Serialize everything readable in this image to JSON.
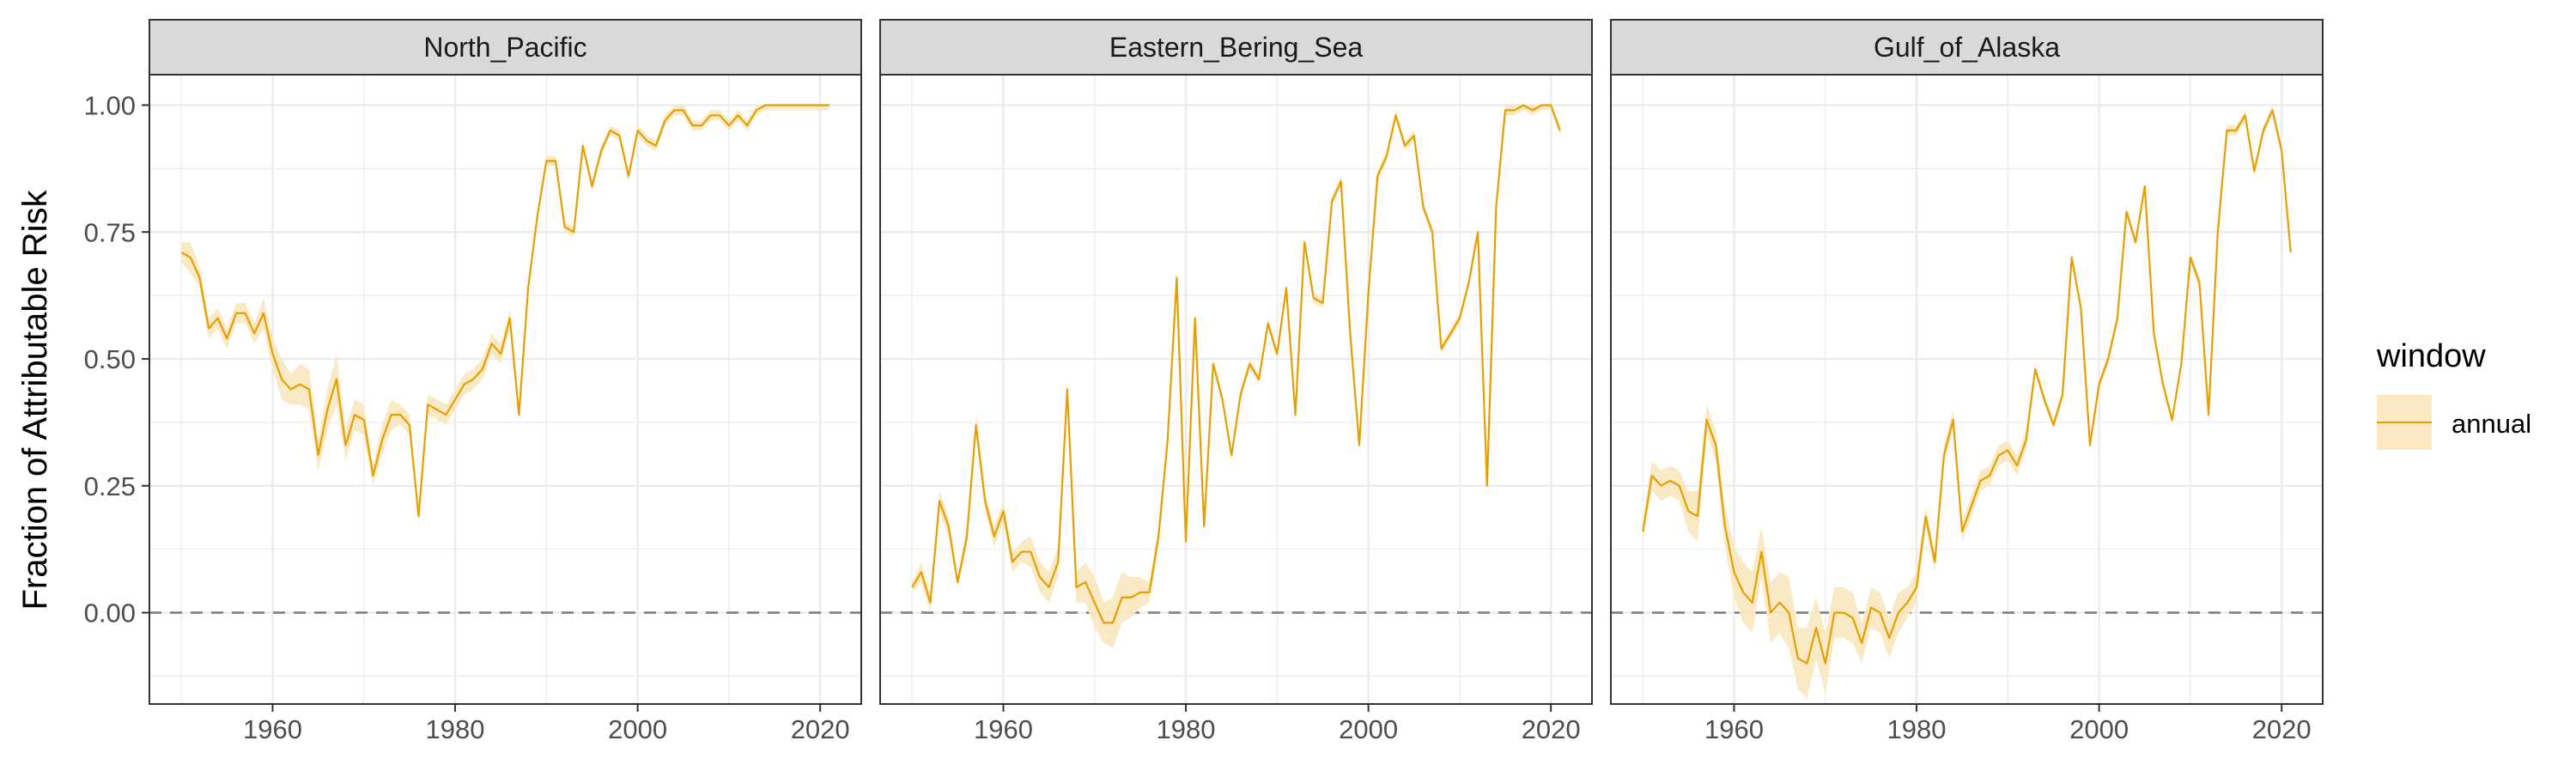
{
  "figure": {
    "ylabel": "Fraction of Attributable Risk",
    "legend": {
      "title": "window",
      "label": "annual",
      "placement": "right"
    }
  },
  "colors": {
    "line": "#E69F00",
    "ribbon": "#F9E8C1",
    "strip": "#D9D9D9",
    "grid": "#EBEBEB",
    "panel_border": "#333333",
    "zero_line": "#808080"
  },
  "chart_data": [
    {
      "type": "line",
      "title": "North_Pacific",
      "xlim": [
        1946.5,
        2024.5
      ],
      "ylim": [
        -0.18,
        1.06
      ],
      "xticks": [
        1960,
        1980,
        2000,
        2020
      ],
      "yticks": [
        "0.00",
        "0.25",
        "0.50",
        "0.75",
        "1.00"
      ],
      "grid": true,
      "hline": 0,
      "series": [
        {
          "x": [
            1950,
            1951,
            1952,
            1953,
            1954,
            1955,
            1956,
            1957,
            1958,
            1959,
            1960,
            1961,
            1962,
            1963,
            1964,
            1965,
            1966,
            1967,
            1968,
            1969,
            1970,
            1971,
            1972,
            1973,
            1974,
            1975,
            1976,
            1977,
            1978,
            1979,
            1980,
            1981,
            1982,
            1983,
            1984,
            1985,
            1986,
            1987,
            1988,
            1989,
            1990,
            1991,
            1992,
            1993,
            1994,
            1995,
            1996,
            1997,
            1998,
            1999,
            2000,
            2001,
            2002,
            2003,
            2004,
            2005,
            2006,
            2007,
            2008,
            2009,
            2010,
            2011,
            2012,
            2013,
            2014,
            2015,
            2016,
            2017,
            2018,
            2019,
            2020,
            2021
          ],
          "y": [
            0.71,
            0.7,
            0.66,
            0.56,
            0.58,
            0.54,
            0.59,
            0.59,
            0.55,
            0.59,
            0.51,
            0.46,
            0.44,
            0.45,
            0.44,
            0.31,
            0.4,
            0.46,
            0.33,
            0.39,
            0.38,
            0.27,
            0.34,
            0.39,
            0.39,
            0.37,
            0.19,
            0.41,
            0.4,
            0.39,
            0.42,
            0.45,
            0.46,
            0.48,
            0.53,
            0.51,
            0.58,
            0.39,
            0.64,
            0.78,
            0.89,
            0.89,
            0.76,
            0.75,
            0.92,
            0.84,
            0.91,
            0.95,
            0.94,
            0.86,
            0.95,
            0.93,
            0.92,
            0.97,
            0.99,
            0.99,
            0.96,
            0.96,
            0.98,
            0.98,
            0.96,
            0.98,
            0.96,
            0.99,
            1.0,
            1.0,
            1.0,
            1.0,
            1.0,
            1.0,
            1.0,
            1.0
          ],
          "lower": [
            0.69,
            0.67,
            0.64,
            0.54,
            0.56,
            0.52,
            0.57,
            0.57,
            0.53,
            0.56,
            0.48,
            0.42,
            0.41,
            0.41,
            0.4,
            0.28,
            0.36,
            0.41,
            0.3,
            0.36,
            0.35,
            0.25,
            0.31,
            0.36,
            0.37,
            0.35,
            0.18,
            0.39,
            0.38,
            0.37,
            0.4,
            0.43,
            0.44,
            0.46,
            0.51,
            0.49,
            0.56,
            0.38,
            0.63,
            0.77,
            0.88,
            0.88,
            0.75,
            0.74,
            0.91,
            0.83,
            0.9,
            0.94,
            0.93,
            0.85,
            0.94,
            0.92,
            0.91,
            0.96,
            0.98,
            0.98,
            0.95,
            0.95,
            0.97,
            0.97,
            0.95,
            0.97,
            0.95,
            0.98,
            0.99,
            0.99,
            0.99,
            0.99,
            0.99,
            0.99,
            0.99,
            0.99
          ],
          "upper": [
            0.73,
            0.73,
            0.68,
            0.58,
            0.6,
            0.56,
            0.61,
            0.61,
            0.57,
            0.62,
            0.54,
            0.5,
            0.47,
            0.49,
            0.48,
            0.34,
            0.44,
            0.51,
            0.36,
            0.42,
            0.41,
            0.29,
            0.37,
            0.42,
            0.41,
            0.39,
            0.2,
            0.43,
            0.42,
            0.41,
            0.44,
            0.47,
            0.48,
            0.5,
            0.55,
            0.53,
            0.6,
            0.4,
            0.65,
            0.79,
            0.9,
            0.9,
            0.77,
            0.76,
            0.93,
            0.85,
            0.92,
            0.96,
            0.95,
            0.87,
            0.96,
            0.94,
            0.93,
            0.98,
            1.0,
            1.0,
            0.97,
            0.97,
            0.99,
            0.99,
            0.97,
            0.99,
            0.97,
            1.0,
            1.0,
            1.0,
            1.0,
            1.0,
            1.0,
            1.0,
            1.0,
            1.0
          ]
        }
      ]
    },
    {
      "type": "line",
      "title": "Eastern_Bering_Sea",
      "xlim": [
        1946.5,
        2024.5
      ],
      "ylim": [
        -0.18,
        1.06
      ],
      "xticks": [
        1960,
        1980,
        2000,
        2020
      ],
      "yticks": [
        "0.00",
        "0.25",
        "0.50",
        "0.75",
        "1.00"
      ],
      "grid": true,
      "hline": 0,
      "series": [
        {
          "x": [
            1950,
            1951,
            1952,
            1953,
            1954,
            1955,
            1956,
            1957,
            1958,
            1959,
            1960,
            1961,
            1962,
            1963,
            1964,
            1965,
            1966,
            1967,
            1968,
            1969,
            1970,
            1971,
            1972,
            1973,
            1974,
            1975,
            1976,
            1977,
            1978,
            1979,
            1980,
            1981,
            1982,
            1983,
            1984,
            1985,
            1986,
            1987,
            1988,
            1989,
            1990,
            1991,
            1992,
            1993,
            1994,
            1995,
            1996,
            1997,
            1998,
            1999,
            2000,
            2001,
            2002,
            2003,
            2004,
            2005,
            2006,
            2007,
            2008,
            2009,
            2010,
            2011,
            2012,
            2013,
            2014,
            2015,
            2016,
            2017,
            2018,
            2019,
            2020,
            2021
          ],
          "y": [
            0.05,
            0.08,
            0.02,
            0.22,
            0.17,
            0.06,
            0.15,
            0.37,
            0.22,
            0.15,
            0.2,
            0.1,
            0.12,
            0.12,
            0.07,
            0.05,
            0.1,
            0.44,
            0.05,
            0.06,
            0.02,
            -0.02,
            -0.02,
            0.03,
            0.03,
            0.04,
            0.04,
            0.15,
            0.34,
            0.66,
            0.14,
            0.58,
            0.17,
            0.49,
            0.42,
            0.31,
            0.43,
            0.49,
            0.46,
            0.57,
            0.51,
            0.64,
            0.39,
            0.73,
            0.62,
            0.61,
            0.81,
            0.85,
            0.55,
            0.33,
            0.63,
            0.86,
            0.9,
            0.98,
            0.92,
            0.94,
            0.8,
            0.75,
            0.52,
            0.55,
            0.58,
            0.65,
            0.75,
            0.25,
            0.8,
            0.99,
            0.99,
            1.0,
            0.99,
            1.0,
            1.0,
            0.95
          ],
          "lower": [
            0.04,
            0.06,
            0.0,
            0.2,
            0.15,
            0.05,
            0.13,
            0.35,
            0.2,
            0.13,
            0.18,
            0.08,
            0.1,
            0.09,
            0.04,
            0.02,
            0.07,
            0.42,
            0.02,
            0.02,
            -0.03,
            -0.06,
            -0.07,
            -0.02,
            -0.01,
            0.01,
            0.02,
            0.13,
            0.33,
            0.65,
            0.13,
            0.57,
            0.16,
            0.48,
            0.41,
            0.3,
            0.42,
            0.48,
            0.45,
            0.56,
            0.5,
            0.63,
            0.38,
            0.72,
            0.61,
            0.6,
            0.8,
            0.84,
            0.54,
            0.32,
            0.62,
            0.85,
            0.89,
            0.97,
            0.91,
            0.93,
            0.79,
            0.74,
            0.51,
            0.54,
            0.57,
            0.64,
            0.74,
            0.24,
            0.79,
            0.98,
            0.98,
            0.99,
            0.98,
            0.99,
            0.99,
            0.94
          ],
          "upper": [
            0.06,
            0.1,
            0.04,
            0.24,
            0.19,
            0.07,
            0.17,
            0.39,
            0.24,
            0.17,
            0.22,
            0.12,
            0.14,
            0.15,
            0.1,
            0.08,
            0.13,
            0.46,
            0.08,
            0.1,
            0.07,
            0.02,
            0.03,
            0.08,
            0.07,
            0.07,
            0.06,
            0.17,
            0.35,
            0.67,
            0.15,
            0.59,
            0.18,
            0.5,
            0.43,
            0.32,
            0.44,
            0.5,
            0.47,
            0.58,
            0.52,
            0.65,
            0.4,
            0.74,
            0.63,
            0.62,
            0.82,
            0.86,
            0.56,
            0.34,
            0.64,
            0.87,
            0.91,
            0.99,
            0.93,
            0.95,
            0.81,
            0.76,
            0.53,
            0.56,
            0.59,
            0.66,
            0.76,
            0.26,
            0.81,
            1.0,
            1.0,
            1.0,
            1.0,
            1.0,
            1.0,
            0.96
          ]
        }
      ]
    },
    {
      "type": "line",
      "title": "Gulf_of_Alaska",
      "xlim": [
        1946.5,
        2024.5
      ],
      "ylim": [
        -0.18,
        1.06
      ],
      "xticks": [
        1960,
        1980,
        2000,
        2020
      ],
      "yticks": [
        "0.00",
        "0.25",
        "0.50",
        "0.75",
        "1.00"
      ],
      "grid": true,
      "hline": 0,
      "series": [
        {
          "x": [
            1950,
            1951,
            1952,
            1953,
            1954,
            1955,
            1956,
            1957,
            1958,
            1959,
            1960,
            1961,
            1962,
            1963,
            1964,
            1965,
            1966,
            1967,
            1968,
            1969,
            1970,
            1971,
            1972,
            1973,
            1974,
            1975,
            1976,
            1977,
            1978,
            1979,
            1980,
            1981,
            1982,
            1983,
            1984,
            1985,
            1986,
            1987,
            1988,
            1989,
            1990,
            1991,
            1992,
            1993,
            1994,
            1995,
            1996,
            1997,
            1998,
            1999,
            2000,
            2001,
            2002,
            2003,
            2004,
            2005,
            2006,
            2007,
            2008,
            2009,
            2010,
            2011,
            2012,
            2013,
            2014,
            2015,
            2016,
            2017,
            2018,
            2019,
            2020,
            2021
          ],
          "y": [
            0.16,
            0.27,
            0.25,
            0.26,
            0.25,
            0.2,
            0.19,
            0.38,
            0.33,
            0.17,
            0.08,
            0.04,
            0.02,
            0.12,
            0.0,
            0.02,
            0.0,
            -0.09,
            -0.1,
            -0.03,
            -0.1,
            0.0,
            0.0,
            -0.01,
            -0.06,
            0.01,
            0.0,
            -0.05,
            0.0,
            0.02,
            0.05,
            0.19,
            0.1,
            0.31,
            0.38,
            0.16,
            0.21,
            0.26,
            0.27,
            0.31,
            0.32,
            0.29,
            0.34,
            0.48,
            0.42,
            0.37,
            0.43,
            0.7,
            0.6,
            0.33,
            0.45,
            0.5,
            0.58,
            0.79,
            0.73,
            0.84,
            0.55,
            0.45,
            0.38,
            0.49,
            0.7,
            0.65,
            0.39,
            0.75,
            0.95,
            0.95,
            0.98,
            0.87,
            0.95,
            0.99,
            0.91,
            0.71
          ],
          "lower": [
            0.14,
            0.24,
            0.22,
            0.23,
            0.22,
            0.16,
            0.14,
            0.35,
            0.3,
            0.13,
            0.03,
            -0.02,
            -0.04,
            0.07,
            -0.06,
            -0.04,
            -0.07,
            -0.15,
            -0.17,
            -0.09,
            -0.16,
            -0.05,
            -0.05,
            -0.06,
            -0.1,
            -0.03,
            -0.04,
            -0.09,
            -0.04,
            -0.01,
            0.02,
            0.17,
            0.08,
            0.29,
            0.36,
            0.14,
            0.19,
            0.24,
            0.25,
            0.29,
            0.3,
            0.27,
            0.32,
            0.47,
            0.41,
            0.36,
            0.42,
            0.69,
            0.59,
            0.32,
            0.44,
            0.49,
            0.57,
            0.78,
            0.72,
            0.83,
            0.54,
            0.44,
            0.37,
            0.48,
            0.69,
            0.64,
            0.38,
            0.74,
            0.94,
            0.94,
            0.97,
            0.86,
            0.94,
            0.98,
            0.9,
            0.7
          ],
          "upper": [
            0.18,
            0.3,
            0.28,
            0.29,
            0.28,
            0.24,
            0.24,
            0.41,
            0.36,
            0.21,
            0.13,
            0.1,
            0.08,
            0.17,
            0.06,
            0.08,
            0.07,
            -0.03,
            -0.03,
            0.03,
            -0.04,
            0.05,
            0.05,
            0.04,
            -0.02,
            0.05,
            0.04,
            -0.01,
            0.04,
            0.05,
            0.08,
            0.21,
            0.12,
            0.33,
            0.4,
            0.18,
            0.23,
            0.28,
            0.29,
            0.33,
            0.34,
            0.31,
            0.36,
            0.49,
            0.43,
            0.38,
            0.44,
            0.71,
            0.61,
            0.34,
            0.46,
            0.51,
            0.59,
            0.8,
            0.74,
            0.85,
            0.56,
            0.46,
            0.39,
            0.5,
            0.71,
            0.66,
            0.4,
            0.76,
            0.96,
            0.96,
            0.99,
            0.88,
            0.96,
            1.0,
            0.92,
            0.72
          ]
        }
      ]
    }
  ]
}
